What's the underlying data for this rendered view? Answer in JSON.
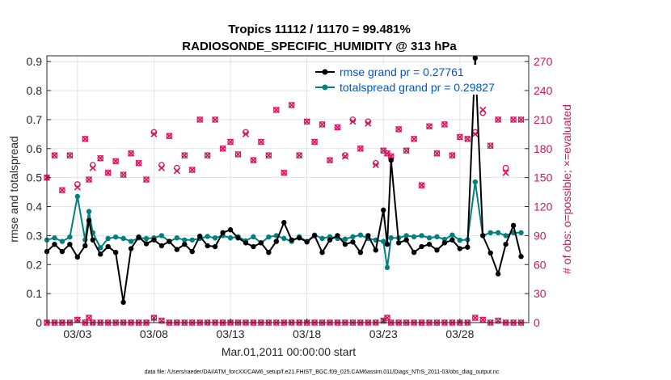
{
  "chart_data": {
    "type": "line",
    "title_line1": "Tropics 11112 / 11170 = 99.481%",
    "title_line2": "RADIOSONDE_SPECIFIC_HUMIDITY @ 313 hPa",
    "xlabel": "Mar.01,2011 00:00:00 start",
    "ylabel_left": "rmse and totalspread",
    "ylabel_right": "# of obs: o=possible; ×=evaluated",
    "footer": "data file: /Users/raeder/DAI/ATM_forcXX/CAM6_setup/f.e21.FHIST_BGC.f09_025.CAM6assim.011/Diags_NTrS_2011-03/obs_diag_output.nc",
    "xlim": [
      1.0,
      32.5
    ],
    "ylim_left": [
      0,
      0.92
    ],
    "ylim_right": [
      0,
      276
    ],
    "x_ticks": [
      3,
      8,
      13,
      18,
      23,
      28
    ],
    "x_tick_labels": [
      "03/03",
      "03/08",
      "03/13",
      "03/18",
      "03/23",
      "03/28"
    ],
    "y_ticks_left": [
      0,
      0.1,
      0.2,
      0.3,
      0.4,
      0.5,
      0.6,
      0.7,
      0.8,
      0.9
    ],
    "y_tick_labels_left": [
      "0",
      "0.1",
      "0.2",
      "0.3",
      "0.4",
      "0.5",
      "0.6",
      "0.7",
      "0.8",
      "0.9"
    ],
    "y_ticks_right": [
      0,
      30,
      60,
      90,
      120,
      150,
      180,
      210,
      240,
      270
    ],
    "y_tick_labels_right": [
      "0",
      "30",
      "60",
      "90",
      "120",
      "150",
      "180",
      "210",
      "240",
      "270"
    ],
    "legend": [
      {
        "name": "rmse grand pr = 0.27761",
        "color": "#000000"
      },
      {
        "name": "totalspread grand pr = 0.29827",
        "color": "#008080"
      }
    ],
    "colors": {
      "rmse": "#000000",
      "spread": "#008080",
      "obs": "#d4145a"
    },
    "series": [
      {
        "name": "rmse",
        "x": [
          1.0,
          1.5,
          2.0,
          2.5,
          3.0,
          3.5,
          3.75,
          4.0,
          4.5,
          5.0,
          5.5,
          6.0,
          6.5,
          7.0,
          7.5,
          8.0,
          8.5,
          9.0,
          9.5,
          10.0,
          10.5,
          11.0,
          11.5,
          12.0,
          12.5,
          13.0,
          13.5,
          14.0,
          14.5,
          15.0,
          15.5,
          16.0,
          16.5,
          17.0,
          17.5,
          18.0,
          18.5,
          19.0,
          19.5,
          20.0,
          20.5,
          21.0,
          21.5,
          22.0,
          22.5,
          23.0,
          23.25,
          23.5,
          24.0,
          24.5,
          25.0,
          25.5,
          26.0,
          26.5,
          27.0,
          27.5,
          28.0,
          28.5,
          29.0,
          29.5,
          30.0,
          30.5,
          31.0,
          31.5,
          32.0
        ],
        "values": [
          0.245,
          0.27,
          0.245,
          0.27,
          0.226,
          0.265,
          0.352,
          0.285,
          0.236,
          0.262,
          0.242,
          0.07,
          0.255,
          0.295,
          0.272,
          0.285,
          0.265,
          0.28,
          0.252,
          0.27,
          0.245,
          0.298,
          0.265,
          0.262,
          0.31,
          0.32,
          0.292,
          0.275,
          0.262,
          0.275,
          0.242,
          0.28,
          0.345,
          0.285,
          0.292,
          0.278,
          0.3,
          0.242,
          0.285,
          0.3,
          0.27,
          0.278,
          0.242,
          0.3,
          0.25,
          0.388,
          0.27,
          0.56,
          0.275,
          0.285,
          0.242,
          0.262,
          0.27,
          0.25,
          0.275,
          0.285,
          0.255,
          0.26,
          0.912,
          0.3,
          0.24,
          0.168,
          0.27,
          0.335,
          0.228
        ]
      },
      {
        "name": "totalspread",
        "x": [
          1.0,
          1.5,
          2.0,
          2.5,
          3.0,
          3.5,
          3.75,
          4.0,
          4.5,
          5.0,
          5.5,
          6.0,
          6.5,
          7.0,
          7.5,
          8.0,
          8.5,
          9.0,
          9.5,
          10.0,
          10.5,
          11.0,
          11.5,
          12.0,
          12.5,
          13.0,
          13.5,
          14.0,
          14.5,
          15.0,
          15.5,
          16.0,
          16.5,
          17.0,
          17.5,
          18.0,
          18.5,
          19.0,
          19.5,
          20.0,
          20.5,
          21.0,
          21.5,
          22.0,
          22.5,
          23.0,
          23.25,
          23.5,
          24.0,
          24.5,
          25.0,
          25.5,
          26.0,
          26.5,
          27.0,
          27.5,
          28.0,
          28.5,
          29.0,
          29.5,
          30.0,
          30.5,
          31.0,
          31.5,
          32.0
        ],
        "values": [
          0.285,
          0.292,
          0.28,
          0.295,
          0.435,
          0.285,
          0.383,
          0.31,
          0.258,
          0.29,
          0.295,
          0.29,
          0.28,
          0.292,
          0.29,
          0.292,
          0.3,
          0.28,
          0.292,
          0.285,
          0.285,
          0.29,
          0.297,
          0.292,
          0.3,
          0.292,
          0.296,
          0.282,
          0.296,
          0.275,
          0.295,
          0.3,
          0.29,
          0.28,
          0.296,
          0.28,
          0.302,
          0.29,
          0.296,
          0.29,
          0.288,
          0.296,
          0.302,
          0.29,
          0.285,
          0.28,
          0.19,
          0.292,
          0.292,
          0.3,
          0.296,
          0.3,
          0.292,
          0.296,
          0.287,
          0.302,
          0.284,
          0.286,
          0.485,
          0.3,
          0.31,
          0.31,
          0.3,
          0.31,
          0.31
        ]
      },
      {
        "name": "obs_possible",
        "x": [
          1.0,
          1.5,
          2.0,
          2.5,
          3.0,
          3.5,
          3.75,
          4.0,
          4.5,
          5.0,
          5.5,
          6.0,
          6.5,
          7.0,
          7.5,
          8.0,
          8.5,
          9.0,
          9.5,
          10.0,
          10.5,
          11.0,
          11.5,
          12.0,
          12.5,
          13.0,
          13.5,
          14.0,
          14.5,
          15.0,
          15.5,
          16.0,
          16.5,
          17.0,
          17.5,
          18.0,
          18.5,
          19.0,
          19.5,
          20.0,
          20.5,
          21.0,
          21.5,
          22.0,
          22.5,
          23.0,
          23.25,
          23.5,
          24.0,
          24.5,
          25.0,
          25.5,
          26.0,
          26.5,
          27.0,
          27.5,
          28.0,
          28.5,
          29.0,
          29.5,
          30.0,
          30.5,
          31.0,
          31.5,
          32.0
        ],
        "values": [
          150,
          173,
          137,
          173,
          143,
          190,
          148,
          163,
          170,
          155,
          167,
          153,
          175,
          165,
          148,
          197,
          163,
          193,
          160,
          173,
          158,
          210,
          173,
          210,
          180,
          187,
          174,
          197,
          168,
          187,
          173,
          220,
          155,
          225,
          173,
          208,
          187,
          205,
          168,
          202,
          173,
          210,
          180,
          208,
          165,
          178,
          175,
          172,
          200,
          178,
          190,
          142,
          203,
          175,
          205,
          173,
          192,
          190,
          197,
          217,
          183,
          210,
          160,
          210,
          210
        ]
      },
      {
        "name": "obs_evaluated",
        "x": [
          1.0,
          1.5,
          2.0,
          2.5,
          3.0,
          3.5,
          3.75,
          4.0,
          4.5,
          5.0,
          5.5,
          6.0,
          6.5,
          7.0,
          7.5,
          8.0,
          8.5,
          9.0,
          9.5,
          10.0,
          10.5,
          11.0,
          11.5,
          12.0,
          12.5,
          13.0,
          13.5,
          14.0,
          14.5,
          15.0,
          15.5,
          16.0,
          16.5,
          17.0,
          17.5,
          18.0,
          18.5,
          19.0,
          19.5,
          20.0,
          20.5,
          21.0,
          21.5,
          22.0,
          22.5,
          23.0,
          23.25,
          23.5,
          24.0,
          24.5,
          25.0,
          25.5,
          26.0,
          26.5,
          27.0,
          27.5,
          28.0,
          28.5,
          29.0,
          29.5,
          30.0,
          30.5,
          31.0,
          31.5,
          32.0
        ],
        "values": [
          150,
          173,
          137,
          173,
          140,
          190,
          148,
          160,
          170,
          155,
          167,
          153,
          175,
          165,
          148,
          195,
          160,
          193,
          157,
          173,
          158,
          210,
          173,
          210,
          180,
          187,
          174,
          195,
          168,
          187,
          173,
          220,
          155,
          225,
          173,
          208,
          187,
          205,
          168,
          202,
          172,
          208,
          180,
          206,
          163,
          178,
          175,
          172,
          200,
          178,
          190,
          142,
          203,
          175,
          205,
          173,
          192,
          190,
          195,
          220,
          183,
          210,
          155,
          210,
          210
        ]
      },
      {
        "name": "obs_zero_line",
        "x": [
          1.0,
          1.5,
          2.0,
          2.5,
          3.0,
          3.5,
          3.75,
          4.0,
          4.5,
          5.0,
          5.5,
          6.0,
          6.5,
          7.0,
          7.5,
          8.0,
          8.5,
          9.0,
          9.5,
          10.0,
          10.5,
          11.0,
          11.5,
          12.0,
          12.5,
          13.0,
          13.5,
          14.0,
          14.5,
          15.0,
          15.5,
          16.0,
          16.5,
          17.0,
          17.5,
          18.0,
          18.5,
          19.0,
          19.5,
          20.0,
          20.5,
          21.0,
          21.5,
          22.0,
          22.5,
          23.0,
          23.25,
          23.5,
          24.0,
          24.5,
          25.0,
          25.5,
          26.0,
          26.5,
          27.0,
          27.5,
          28.0,
          28.5,
          29.0,
          29.5,
          30.0,
          30.5,
          31.0,
          31.5,
          32.0
        ],
        "values": [
          0,
          0,
          0,
          0,
          3,
          0,
          5,
          0,
          0,
          0,
          0,
          0,
          0,
          0,
          0,
          5,
          2,
          0,
          0,
          0,
          0,
          0,
          0,
          0,
          0,
          0,
          0,
          0,
          0,
          0,
          0,
          0,
          0,
          0,
          0,
          0,
          0,
          0,
          0,
          0,
          0,
          0,
          0,
          0,
          0,
          2,
          5,
          0,
          0,
          0,
          0,
          0,
          0,
          0,
          0,
          0,
          0,
          0,
          5,
          3,
          0,
          2,
          0,
          0,
          0
        ]
      }
    ]
  }
}
